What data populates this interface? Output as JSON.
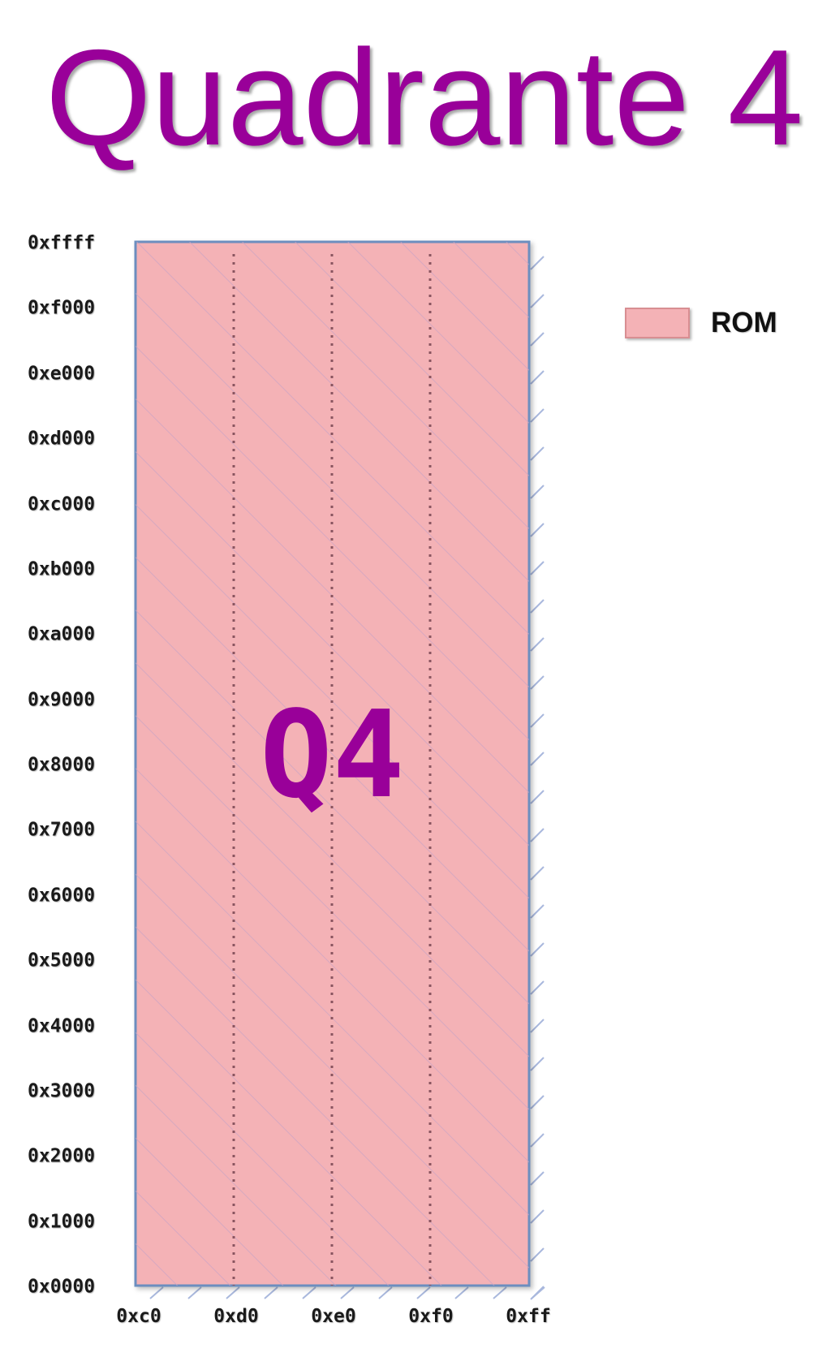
{
  "title": "Quadrante 4",
  "region_label": "Q4",
  "legend": {
    "items": [
      {
        "label": "ROM",
        "color": "#f4b2b6"
      }
    ]
  },
  "y_axis": {
    "ticks": [
      "0xffff",
      "0xf000",
      "0xe000",
      "0xd000",
      "0xc000",
      "0xb000",
      "0xa000",
      "0x9000",
      "0x8000",
      "0x7000",
      "0x6000",
      "0x5000",
      "0x4000",
      "0x3000",
      "0x2000",
      "0x1000",
      "0x0000"
    ]
  },
  "x_axis": {
    "ticks": [
      "0xc0",
      "0xd0",
      "0xe0",
      "0xf0",
      "0xff"
    ]
  },
  "colors": {
    "title": "#990099",
    "rom_fill": "#f4b2b6",
    "rom_border": "#6c8ebf"
  }
}
